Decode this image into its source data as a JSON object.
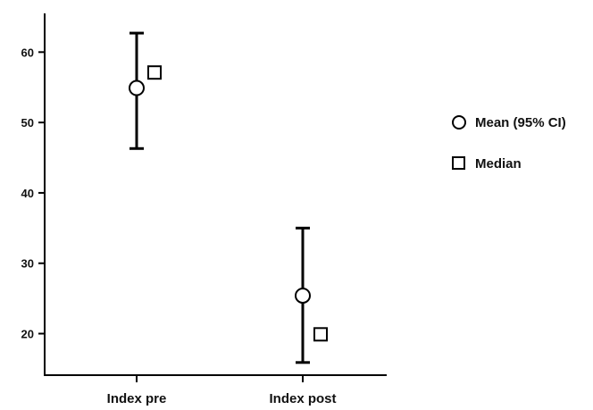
{
  "chart_data": {
    "type": "scatter",
    "categories": [
      "Index pre",
      "Index post"
    ],
    "ylim": [
      14.1,
      65.5
    ],
    "yticks": [
      20,
      30,
      40,
      50,
      60
    ],
    "ytick_labels": [
      "20",
      "30",
      "40",
      "50",
      "60"
    ],
    "series": [
      {
        "name": "Mean (95% CI)",
        "marker": "circle",
        "values": [
          54.9,
          25.4
        ],
        "ci_low": [
          46.3,
          15.9
        ],
        "ci_high": [
          62.7,
          35.0
        ]
      },
      {
        "name": "Median",
        "marker": "square",
        "values": [
          57.1,
          19.9
        ]
      }
    ],
    "legend": {
      "position": "right",
      "entries": [
        "Mean (95% CI)",
        "Median"
      ]
    },
    "grid": false,
    "colors": {
      "axis": "#000000",
      "marker_fill": "#ffffff",
      "marker_stroke": "#000000",
      "text": "#111111"
    }
  }
}
